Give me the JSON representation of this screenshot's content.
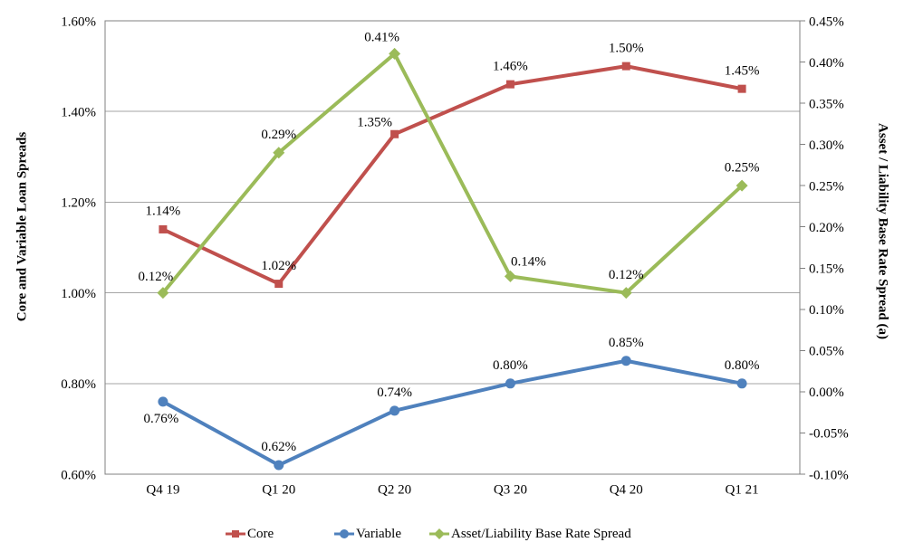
{
  "chart_data": {
    "type": "line",
    "title": "",
    "categories": [
      "Q4 19",
      "Q1 20",
      "Q2 20",
      "Q3 20",
      "Q4 20",
      "Q1 21"
    ],
    "series": [
      {
        "name": "Core",
        "axis": "left",
        "marker": "square",
        "color": "#C0504D",
        "values": [
          1.14,
          1.02,
          1.35,
          1.46,
          1.5,
          1.45
        ],
        "labels": [
          "1.14%",
          "1.02%",
          "1.35%",
          "1.46%",
          "1.50%",
          "1.45%"
        ]
      },
      {
        "name": "Variable",
        "axis": "left",
        "marker": "circle",
        "color": "#4F81BD",
        "values": [
          0.76,
          0.62,
          0.74,
          0.8,
          0.85,
          0.8
        ],
        "labels": [
          "0.76%",
          "0.62%",
          "0.74%",
          "0.80%",
          "0.85%",
          "0.80%"
        ]
      },
      {
        "name": "Asset/Liability Base Rate Spread",
        "axis": "right",
        "marker": "diamond",
        "color": "#9BBB59",
        "values": [
          0.12,
          0.29,
          0.41,
          0.14,
          0.12,
          0.25
        ],
        "labels": [
          "0.12%",
          "0.29%",
          "0.41%",
          "0.14%",
          "0.12%",
          "0.25%"
        ]
      }
    ],
    "left_axis": {
      "title": "Core and Variable Loan Spreads",
      "min": 0.6,
      "max": 1.6,
      "step": 0.2,
      "tick_labels": [
        "1.60%",
        "1.40%",
        "1.20%",
        "1.00%",
        "0.80%",
        "0.60%"
      ]
    },
    "right_axis": {
      "title": "Asset / Liability Base Rate Spread (a)",
      "min": -0.1,
      "max": 0.45,
      "step": 0.05,
      "tick_labels": [
        "0.45%",
        "0.40%",
        "0.35%",
        "0.30%",
        "0.25%",
        "0.20%",
        "0.15%",
        "0.10%",
        "0.05%",
        "0.00%",
        "-0.05%",
        "-0.10%"
      ]
    },
    "legend": {
      "position": "bottom",
      "entries": [
        "Core",
        "Variable",
        "Asset/Liability Base Rate Spread"
      ]
    },
    "grid": true,
    "colors": {
      "axis_line": "#808080",
      "gridline": "#A6A6A6",
      "text": "#000000",
      "background": "#FFFFFF"
    }
  }
}
